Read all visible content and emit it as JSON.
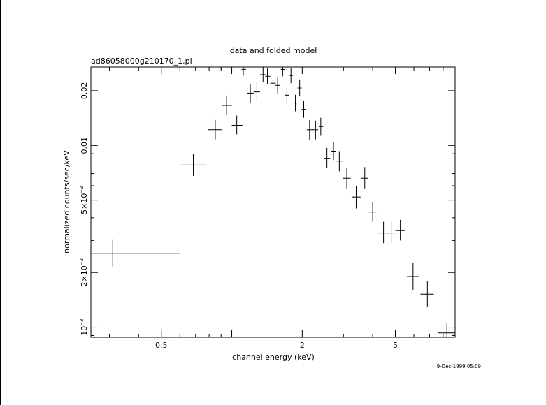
{
  "chart_data": {
    "type": "scatter",
    "title": "data and folded model",
    "subtitle": "ad86058000g210170_1.pi",
    "xlabel": "channel energy (keV)",
    "ylabel": "normalized counts/sec/keV",
    "xscale": "log",
    "yscale": "log",
    "xlim": [
      0.25,
      9.0
    ],
    "ylim": [
      0.00088,
      0.027
    ],
    "x_ticks": [
      {
        "value": 0.5,
        "label": "0.5"
      },
      {
        "value": 2,
        "label": "2"
      },
      {
        "value": 5,
        "label": "5"
      }
    ],
    "y_ticks": [
      {
        "value": 0.001,
        "mantissa": "10",
        "exponent": "−3"
      },
      {
        "value": 0.002,
        "mantissa": "2×10",
        "exponent": "−3"
      },
      {
        "value": 0.005,
        "mantissa": "5×10",
        "exponent": "−3"
      },
      {
        "value": 0.01,
        "mantissa": "0.01",
        "exponent": ""
      },
      {
        "value": 0.02,
        "mantissa": "0.02",
        "exponent": ""
      }
    ],
    "grid": false,
    "series": [
      {
        "points": [
          {
            "x": 0.31,
            "xlo": 0.25,
            "xhi": 0.6,
            "y": 0.00255,
            "ylo": 0.00215,
            "yhi": 0.00305
          },
          {
            "x": 0.685,
            "xlo": 0.6,
            "xhi": 0.78,
            "y": 0.0078,
            "ylo": 0.0068,
            "yhi": 0.009
          },
          {
            "x": 0.85,
            "xlo": 0.79,
            "xhi": 0.91,
            "y": 0.0122,
            "ylo": 0.0108,
            "yhi": 0.0138
          },
          {
            "x": 0.95,
            "xlo": 0.91,
            "xhi": 1.0,
            "y": 0.0166,
            "ylo": 0.0148,
            "yhi": 0.0188
          },
          {
            "x": 1.05,
            "xlo": 1.0,
            "xhi": 1.11,
            "y": 0.0129,
            "ylo": 0.0115,
            "yhi": 0.0146
          },
          {
            "x": 1.12,
            "xlo": 1.1,
            "xhi": 1.15,
            "y": 0.0262,
            "ylo": 0.0242,
            "yhi": 0.027
          },
          {
            "x": 1.2,
            "xlo": 1.16,
            "xhi": 1.24,
            "y": 0.0194,
            "ylo": 0.0172,
            "yhi": 0.0218
          },
          {
            "x": 1.28,
            "xlo": 1.24,
            "xhi": 1.32,
            "y": 0.0197,
            "ylo": 0.0176,
            "yhi": 0.0221
          },
          {
            "x": 1.36,
            "xlo": 1.32,
            "xhi": 1.4,
            "y": 0.0245,
            "ylo": 0.0222,
            "yhi": 0.027
          },
          {
            "x": 1.42,
            "xlo": 1.39,
            "xhi": 1.46,
            "y": 0.024,
            "ylo": 0.0218,
            "yhi": 0.0265
          },
          {
            "x": 1.5,
            "xlo": 1.46,
            "xhi": 1.54,
            "y": 0.022,
            "ylo": 0.0198,
            "yhi": 0.0245
          },
          {
            "x": 1.57,
            "xlo": 1.53,
            "xhi": 1.61,
            "y": 0.0214,
            "ylo": 0.0193,
            "yhi": 0.0238
          },
          {
            "x": 1.65,
            "xlo": 1.62,
            "xhi": 1.68,
            "y": 0.0262,
            "ylo": 0.024,
            "yhi": 0.027
          },
          {
            "x": 1.72,
            "xlo": 1.68,
            "xhi": 1.76,
            "y": 0.0189,
            "ylo": 0.017,
            "yhi": 0.021
          },
          {
            "x": 1.79,
            "xlo": 1.77,
            "xhi": 1.82,
            "y": 0.0242,
            "ylo": 0.022,
            "yhi": 0.0266
          },
          {
            "x": 1.87,
            "xlo": 1.83,
            "xhi": 1.91,
            "y": 0.0171,
            "ylo": 0.0154,
            "yhi": 0.019
          },
          {
            "x": 1.95,
            "xlo": 1.91,
            "xhi": 1.99,
            "y": 0.0207,
            "ylo": 0.0186,
            "yhi": 0.023
          },
          {
            "x": 2.03,
            "xlo": 1.99,
            "xhi": 2.07,
            "y": 0.0158,
            "ylo": 0.0142,
            "yhi": 0.0176
          },
          {
            "x": 2.15,
            "xlo": 2.09,
            "xhi": 2.22,
            "y": 0.0122,
            "ylo": 0.0107,
            "yhi": 0.0138
          },
          {
            "x": 2.28,
            "xlo": 2.22,
            "xhi": 2.34,
            "y": 0.0122,
            "ylo": 0.0108,
            "yhi": 0.0137
          },
          {
            "x": 2.4,
            "xlo": 2.35,
            "xhi": 2.46,
            "y": 0.0127,
            "ylo": 0.0113,
            "yhi": 0.0142
          },
          {
            "x": 2.55,
            "xlo": 2.47,
            "xhi": 2.63,
            "y": 0.0085,
            "ylo": 0.0075,
            "yhi": 0.0097
          },
          {
            "x": 2.72,
            "xlo": 2.65,
            "xhi": 2.79,
            "y": 0.0093,
            "ylo": 0.0083,
            "yhi": 0.0104
          },
          {
            "x": 2.88,
            "xlo": 2.8,
            "xhi": 2.96,
            "y": 0.0082,
            "ylo": 0.0072,
            "yhi": 0.0093
          },
          {
            "x": 3.1,
            "xlo": 2.98,
            "xhi": 3.22,
            "y": 0.0066,
            "ylo": 0.0058,
            "yhi": 0.0075
          },
          {
            "x": 3.4,
            "xlo": 3.25,
            "xhi": 3.55,
            "y": 0.0052,
            "ylo": 0.0045,
            "yhi": 0.006
          },
          {
            "x": 3.7,
            "xlo": 3.58,
            "xhi": 3.82,
            "y": 0.0066,
            "ylo": 0.0058,
            "yhi": 0.0076
          },
          {
            "x": 4.0,
            "xlo": 3.85,
            "xhi": 4.15,
            "y": 0.0043,
            "ylo": 0.0038,
            "yhi": 0.0049
          },
          {
            "x": 4.45,
            "xlo": 4.2,
            "xhi": 4.7,
            "y": 0.0033,
            "ylo": 0.0029,
            "yhi": 0.0038
          },
          {
            "x": 4.8,
            "xlo": 4.6,
            "xhi": 5.0,
            "y": 0.0033,
            "ylo": 0.0029,
            "yhi": 0.0038
          },
          {
            "x": 5.25,
            "xlo": 5.0,
            "xhi": 5.5,
            "y": 0.0034,
            "ylo": 0.003,
            "yhi": 0.0039
          },
          {
            "x": 5.95,
            "xlo": 5.6,
            "xhi": 6.3,
            "y": 0.0019,
            "ylo": 0.0016,
            "yhi": 0.00225
          },
          {
            "x": 6.85,
            "xlo": 6.4,
            "xhi": 7.3,
            "y": 0.00152,
            "ylo": 0.0013,
            "yhi": 0.0018
          },
          {
            "x": 8.3,
            "xlo": 7.6,
            "xhi": 9.0,
            "y": 0.00093,
            "ylo": 0.00083,
            "yhi": 0.00106
          }
        ]
      }
    ]
  },
  "footer": {
    "timestamp": "9-Dec-1999 05:09"
  }
}
